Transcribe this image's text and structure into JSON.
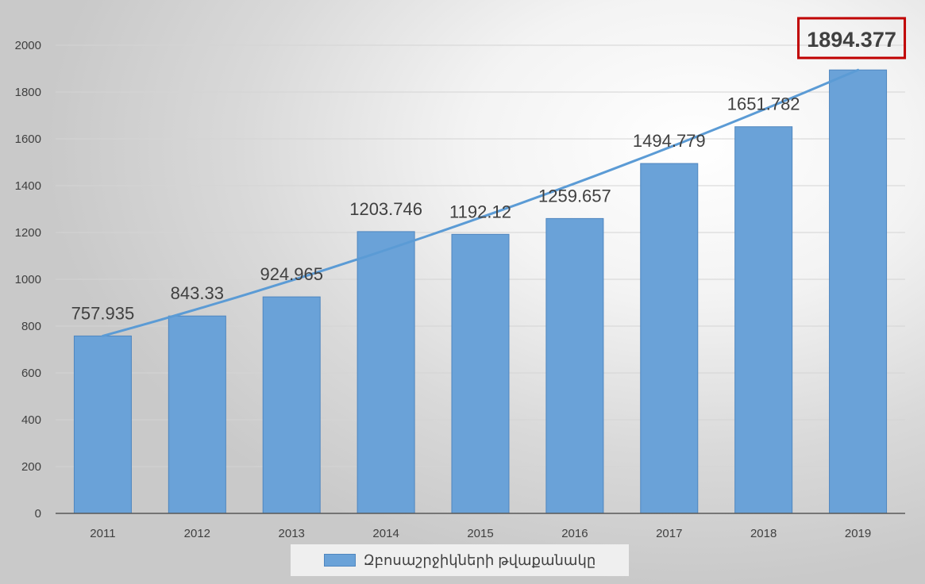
{
  "chart_data": {
    "type": "bar",
    "title": "",
    "xlabel": "",
    "ylabel": "",
    "categories": [
      "2011",
      "2012",
      "2013",
      "2014",
      "2015",
      "2016",
      "2017",
      "2018",
      "2019"
    ],
    "series": [
      {
        "name": "Զբոսաշրջիկների թվաքանակը",
        "values": [
          757.935,
          843.33,
          924.965,
          1203.746,
          1192.12,
          1259.657,
          1494.779,
          1651.782,
          1894.377
        ],
        "labels": [
          "757.935",
          "843.33",
          "924.965",
          "1203.746",
          "1192.12",
          "1259.657",
          "1494.779",
          "1651.782",
          "1894.377"
        ]
      }
    ],
    "trendline": {
      "type": "linear-smooth",
      "start": 757.935,
      "end": 1894.377
    },
    "ylim": [
      0,
      2000
    ],
    "yticks": [
      "0",
      "200",
      "400",
      "600",
      "800",
      "1000",
      "1200",
      "1400",
      "1600",
      "1800",
      "2000"
    ],
    "grid": true,
    "legend": "bottom",
    "highlight_category": "2019",
    "colors": {
      "bar": "#6aa2d8",
      "bar_border": "#4f86bf",
      "trend": "#5b9bd5",
      "highlight_box": "#c00000"
    }
  }
}
